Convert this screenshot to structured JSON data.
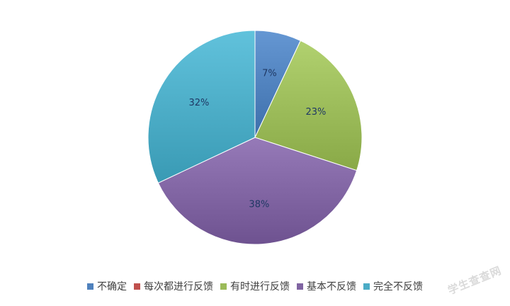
{
  "chart_data": {
    "type": "pie",
    "title": "",
    "categories": [
      "不确定",
      "每次都进行反馈",
      "有时进行反馈",
      "基本不反馈",
      "完全不反馈"
    ],
    "values": [
      7,
      0,
      23,
      38,
      32
    ],
    "labels": [
      "7%",
      "",
      "23%",
      "38%",
      "32%"
    ],
    "colors": [
      "#4f81bd",
      "#c0504d",
      "#9bbb59",
      "#8064a2",
      "#4bacc6"
    ],
    "legend_position": "bottom",
    "start_angle": "12 o'clock, clockwise"
  },
  "watermark": {
    "text": "学生查查网"
  }
}
